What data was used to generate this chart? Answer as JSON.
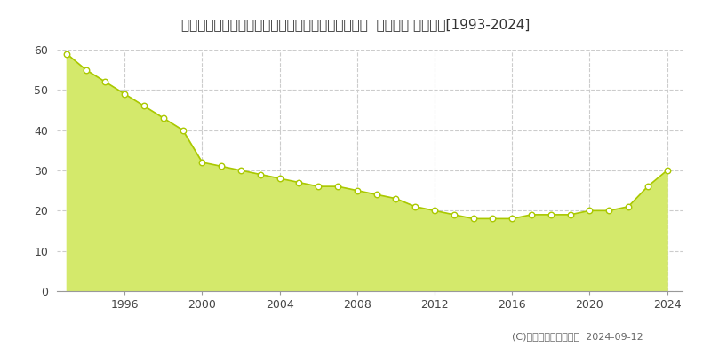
{
  "title": "北海道札幌市東区東苗穂６条２丁目５７６番５１外  地価公示 地価推移[1993-2024]",
  "years": [
    1993,
    1994,
    1995,
    1996,
    1997,
    1998,
    1999,
    2000,
    2001,
    2002,
    2003,
    2004,
    2005,
    2006,
    2007,
    2008,
    2009,
    2010,
    2011,
    2012,
    2013,
    2014,
    2015,
    2016,
    2017,
    2018,
    2019,
    2020,
    2021,
    2022,
    2023,
    2024
  ],
  "values": [
    59,
    55,
    52,
    49,
    46,
    43,
    40,
    32,
    31,
    30,
    29,
    28,
    27,
    26,
    26,
    25,
    24,
    23,
    21,
    20,
    19,
    18,
    18,
    18,
    19,
    19,
    19,
    20,
    20,
    21,
    26,
    30
  ],
  "fill_color": "#d4e96b",
  "line_color": "#aac800",
  "marker_color": "#ffffff",
  "marker_edge_color": "#aac800",
  "background_color": "#ffffff",
  "plot_bg_color": "#f5f5f5",
  "grid_color": "#cccccc",
  "ylim": [
    0,
    60
  ],
  "yticks": [
    0,
    10,
    20,
    30,
    40,
    50,
    60
  ],
  "xtick_years": [
    1996,
    2000,
    2004,
    2008,
    2012,
    2016,
    2020,
    2024
  ],
  "copyright_text": "(C)土地価格ドットコム  2024-09-12",
  "title_fontsize": 11,
  "tick_fontsize": 9,
  "legend_fontsize": 9
}
